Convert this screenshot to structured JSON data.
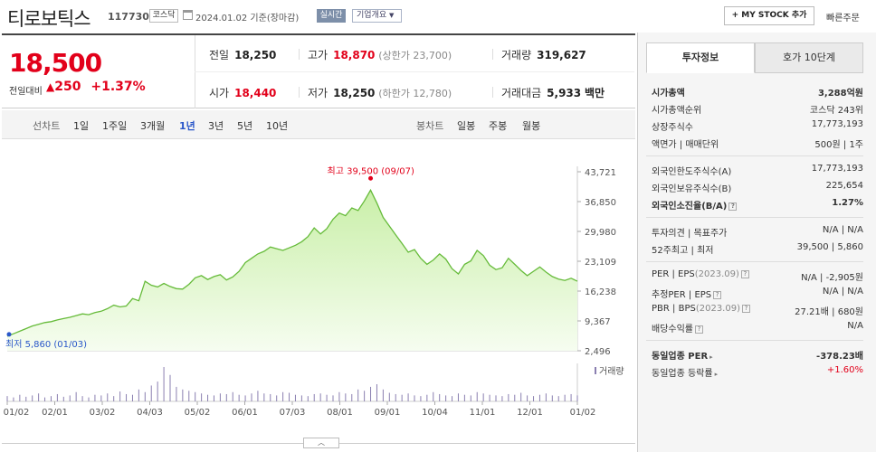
{
  "header": {
    "name": "티로보틱스",
    "code": "117730",
    "market": "코스닥",
    "date": "2024.01.02  기준(장마감)",
    "realtime": "실시간",
    "company_info": "기업개요",
    "mystock": "+ MY STOCK 추가",
    "quick_order": "빠른주문"
  },
  "quote": {
    "price": "18,500",
    "change_label": "전일대비",
    "change_amount": "250",
    "change_rate": "+1.37%",
    "prev_close_label": "전일",
    "prev_close": "18,250",
    "high_label": "고가",
    "high": "18,870",
    "upper_limit": "(상한가 23,700)",
    "volume_label": "거래량",
    "volume": "319,627",
    "open_label": "시가",
    "open": "18,440",
    "low_label": "저가",
    "low": "18,250",
    "lower_limit": "(하한가 12,780)",
    "value_label": "거래대금",
    "value": "5,933",
    "value_unit": "백만"
  },
  "periods": {
    "line_label": "선차트",
    "items": [
      "1일",
      "1주일",
      "3개월",
      "1년",
      "3년",
      "5년",
      "10년"
    ],
    "active": "1년",
    "candle_label": "봉차트",
    "candle_items": [
      "일봉",
      "주봉",
      "월봉"
    ]
  },
  "chart_data": {
    "type": "area",
    "y_ticks": [
      "43,721",
      "36,850",
      "29,980",
      "23,109",
      "16,238",
      "9,367",
      "2,496"
    ],
    "ylim": [
      2496,
      43721
    ],
    "x_labels": [
      "01/02",
      "02/01",
      "03/02",
      "04/03",
      "05/02",
      "06/01",
      "07/03",
      "08/01",
      "09/01",
      "10/04",
      "11/01",
      "12/01",
      "01/02"
    ],
    "values": [
      5860,
      6400,
      7000,
      7600,
      8200,
      8600,
      9000,
      9200,
      9600,
      9900,
      10200,
      10600,
      11000,
      10800,
      11300,
      11600,
      12200,
      13000,
      12600,
      12800,
      14500,
      14000,
      18500,
      17600,
      17200,
      18000,
      17300,
      16800,
      16700,
      17800,
      19300,
      19800,
      18900,
      19600,
      20000,
      18800,
      19500,
      20800,
      22800,
      23800,
      24800,
      25400,
      26400,
      26000,
      25600,
      26200,
      26800,
      27600,
      28800,
      30800,
      29400,
      30600,
      32800,
      34200,
      33600,
      35400,
      34800,
      37000,
      39500,
      36500,
      33200,
      31200,
      29200,
      27200,
      25200,
      25800,
      23800,
      22400,
      23400,
      24800,
      23600,
      21400,
      20200,
      22400,
      23200,
      25600,
      24400,
      22200,
      21200,
      21600,
      23800,
      22400,
      21000,
      19800,
      20800,
      21800,
      20600,
      19600,
      19000,
      18700,
      19200,
      18500
    ],
    "high_label": "최고 39,500 (09/07)",
    "low_label": "최저 5,860 (01/03)",
    "volume_label": "거래량",
    "volume_values": [
      8,
      6,
      10,
      7,
      9,
      12,
      6,
      8,
      11,
      7,
      9,
      14,
      8,
      6,
      10,
      9,
      12,
      8,
      15,
      11,
      10,
      18,
      14,
      24,
      30,
      52,
      40,
      22,
      18,
      16,
      14,
      12,
      10,
      9,
      12,
      11,
      14,
      10,
      9,
      12,
      16,
      12,
      11,
      9,
      14,
      13,
      10,
      9,
      8,
      11,
      12,
      10,
      9,
      14,
      12,
      11,
      18,
      16,
      22,
      26,
      18,
      13,
      11,
      10,
      12,
      9,
      8,
      10,
      14,
      11,
      9,
      8,
      12,
      10,
      9,
      14,
      12,
      10,
      9,
      8,
      11,
      10,
      13,
      9,
      8,
      10,
      12,
      9,
      8,
      10,
      11,
      9
    ],
    "colors": {
      "line": "#66bb3a",
      "fill_top": "#c9efa8",
      "fill_bottom": "#f6fdf0",
      "volume": "#8a7fb0",
      "high": "#e2001a",
      "low": "#2a57c9"
    }
  },
  "tabs": {
    "active": "투자정보",
    "inactive": "호가 10단계"
  },
  "invest": {
    "market_cap_label": "시가총액",
    "market_cap": "3,288억원",
    "rank_label": "시가총액순위",
    "rank": "코스닥 243위",
    "shares_label": "상장주식수",
    "shares": "17,773,193",
    "par_label": "액면가",
    "trade_unit_label": "매매단위",
    "par_value": "500원",
    "trade_unit": "1주",
    "foreign_limit_label": "외국인한도주식수(A)",
    "foreign_limit": "17,773,193",
    "foreign_hold_label": "외국인보유주식수(B)",
    "foreign_hold": "225,654",
    "foreign_ratio_label": "외국인소진율(B/A)",
    "foreign_ratio": "1.27%",
    "opinion_label": "투자의견",
    "target_label": "목표주가",
    "opinion": "N/A",
    "target": "N/A",
    "high52_label": "52주최고",
    "low52_label": "최저",
    "high52": "39,500",
    "low52": "5,860",
    "per_label": "PER",
    "eps_label": "EPS",
    "eps_year": "(2023.09)",
    "per": "N/A",
    "eps": "-2,905원",
    "est_per_label": "추정PER",
    "est_eps_label": "EPS",
    "est_per": "N/A",
    "est_eps": "N/A",
    "pbr_label": "PBR",
    "bps_label": "BPS",
    "bps_year": "(2023.09)",
    "pbr": "27.21배",
    "bps": "680원",
    "dividend_label": "배당수익률",
    "dividend": "N/A",
    "sector_per_label": "동일업종 PER",
    "sector_per": "-378.23배",
    "sector_change_label": "동일업종 등락률",
    "sector_change": "+1.60%"
  }
}
